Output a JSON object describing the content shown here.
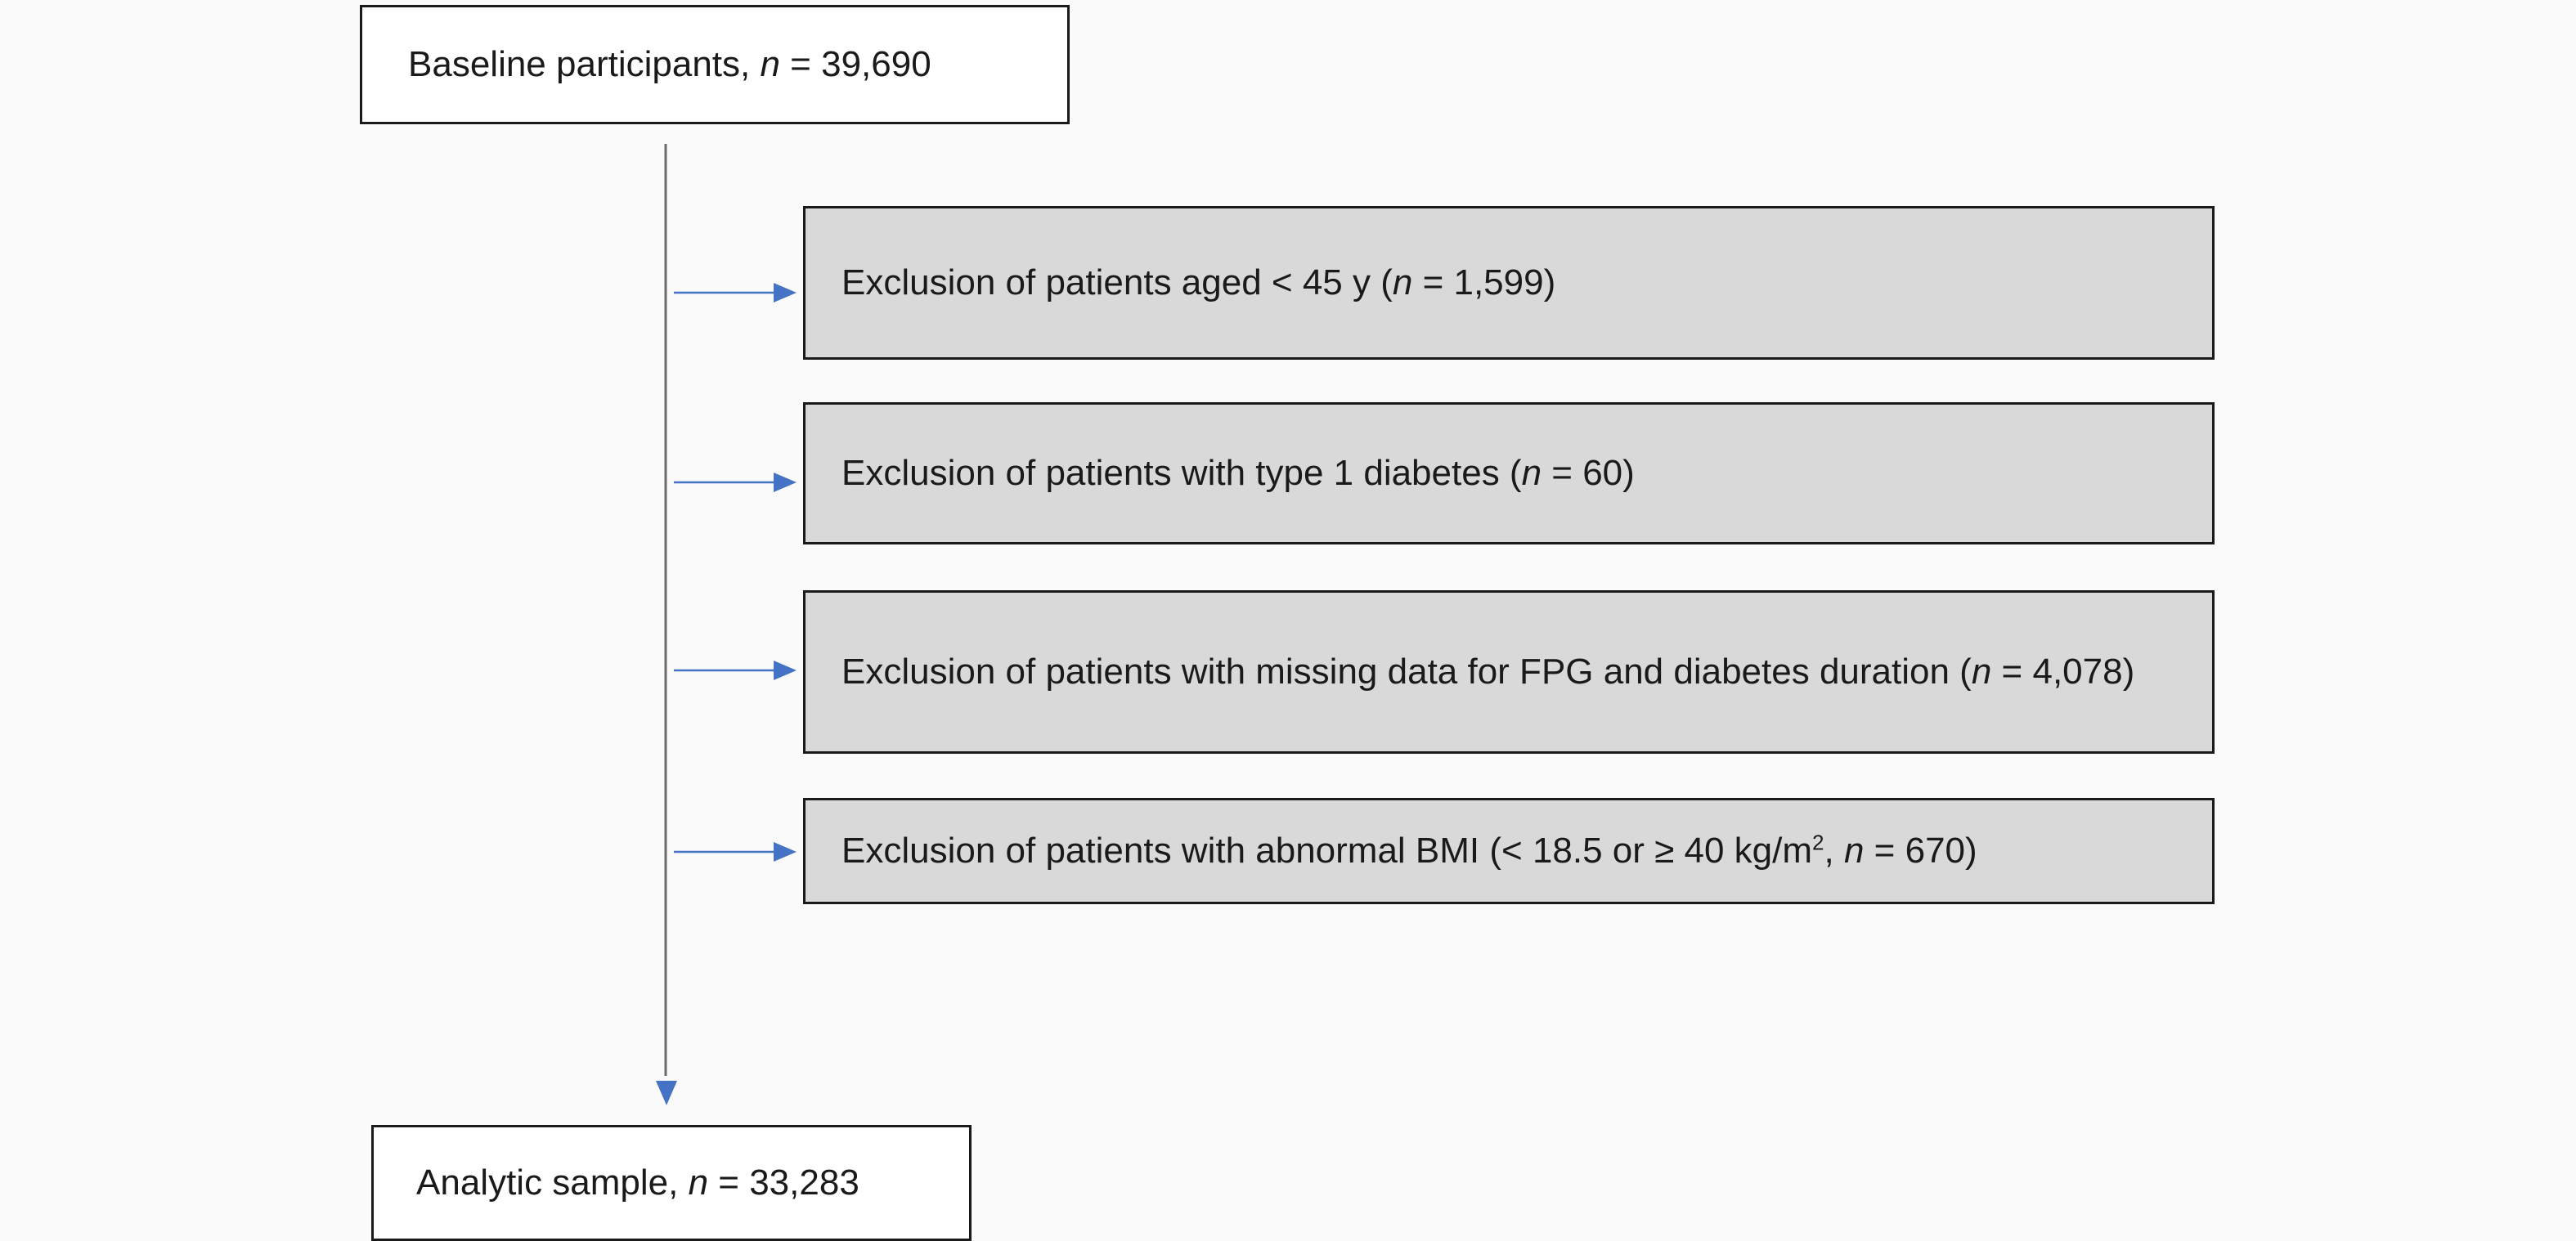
{
  "start_box": {
    "label": "Baseline participants, ",
    "n_symbol": "n",
    "n_text": " = 39,690"
  },
  "exclusions": [
    {
      "before": "Exclusion of patients aged < 45 y (",
      "n_symbol": "n",
      "after": " = 1,599)"
    },
    {
      "before": "Exclusion of patients with type 1 diabetes (",
      "n_symbol": "n",
      "after": " = 60)"
    },
    {
      "before": "Exclusion of patients with missing data for FPG and diabetes duration (",
      "n_symbol": "n",
      "after": " = 4,078)"
    },
    {
      "before": "Exclusion of patients with abnormal BMI (< 18.5 or ≥ 40 kg/m",
      "superscript": "2",
      "middle": ", ",
      "n_symbol": "n",
      "after": " = 670)"
    }
  ],
  "end_box": {
    "label": "Analytic sample, ",
    "n_symbol": "n",
    "n_text": " = 33,283"
  },
  "colors": {
    "arrow": "#4472c4",
    "exclusion_fill": "#d9d9d9",
    "border": "#1a1a1a",
    "background": "#fafafa"
  }
}
